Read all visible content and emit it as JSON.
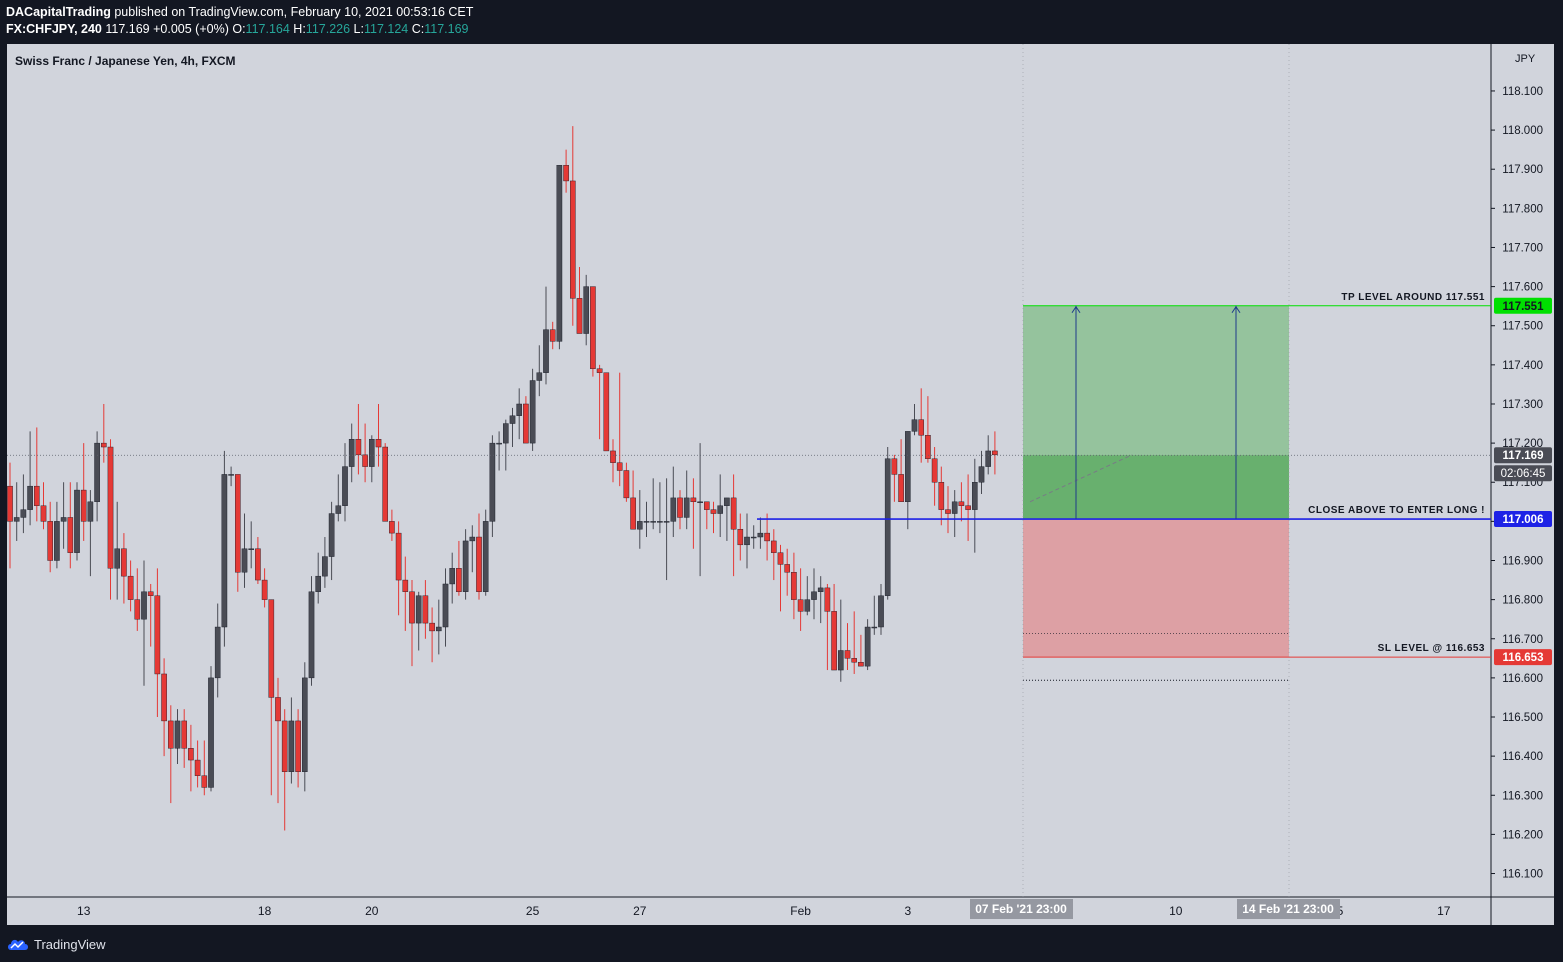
{
  "header": {
    "author": "DACapitalTrading",
    "published_text": "published on TradingView.com, February 10, 2021 00:53:16 CET",
    "symbol_interval": "FX:CHFJPY, 240",
    "last_price": "117.169",
    "change": "+0.005 (+0%)",
    "o_label": "O:",
    "o_value": "117.164",
    "h_label": "H:",
    "h_value": "117.226",
    "l_label": "L:",
    "l_value": "117.124",
    "c_label": "C:",
    "c_value": "117.169"
  },
  "footer": {
    "brand": "TradingView"
  },
  "chart_data": {
    "type": "candlestick",
    "title": "Swiss Franc / Japanese Yen, 4h, FXCM",
    "currency_label": "JPY",
    "ylim": [
      116.04,
      118.22
    ],
    "y_ticks": [
      "116.100",
      "116.200",
      "116.300",
      "116.400",
      "116.500",
      "116.600",
      "116.700",
      "116.800",
      "116.900",
      "117.000",
      "117.100",
      "117.200",
      "117.300",
      "117.400",
      "117.500",
      "117.600",
      "117.700",
      "117.800",
      "117.900",
      "118.000",
      "118.100"
    ],
    "x_ticks": [
      {
        "label": "13",
        "bar": 11
      },
      {
        "label": "18",
        "bar": 38
      },
      {
        "label": "20",
        "bar": 54
      },
      {
        "label": "25",
        "bar": 78
      },
      {
        "label": "27",
        "bar": 94
      },
      {
        "label": "Feb",
        "bar": 118
      },
      {
        "label": "3",
        "bar": 134
      },
      {
        "label": "8",
        "bar": 158
      },
      {
        "label": "10",
        "bar": 174
      },
      {
        "label": "15",
        "bar": 198
      },
      {
        "label": "17",
        "bar": 214
      }
    ],
    "colors": {
      "up": "#4a4c55",
      "down": "#e53935",
      "background": "#d1d4dc",
      "grid": "#d1d4dc"
    },
    "candles": [
      [
        117.09,
        117.15,
        116.88,
        117.0
      ],
      [
        117.0,
        117.1,
        116.95,
        117.01
      ],
      [
        117.01,
        117.12,
        116.97,
        117.03
      ],
      [
        117.03,
        117.23,
        116.99,
        117.09
      ],
      [
        117.09,
        117.24,
        117.0,
        117.04
      ],
      [
        117.04,
        117.1,
        116.98,
        117.0
      ],
      [
        117.0,
        117.05,
        116.87,
        116.9
      ],
      [
        116.9,
        117.05,
        116.88,
        117.0
      ],
      [
        117.0,
        117.1,
        116.93,
        117.01
      ],
      [
        117.01,
        117.1,
        116.88,
        116.92
      ],
      [
        116.92,
        117.1,
        116.9,
        117.08
      ],
      [
        117.08,
        117.2,
        116.95,
        117.0
      ],
      [
        117.0,
        117.08,
        116.86,
        117.05
      ],
      [
        117.05,
        117.23,
        117.0,
        117.2
      ],
      [
        117.2,
        117.3,
        117.15,
        117.19
      ],
      [
        117.19,
        117.21,
        116.8,
        116.88
      ],
      [
        116.88,
        117.05,
        116.8,
        116.93
      ],
      [
        116.93,
        116.97,
        116.79,
        116.86
      ],
      [
        116.86,
        116.9,
        116.77,
        116.8
      ],
      [
        116.8,
        116.88,
        116.72,
        116.75
      ],
      [
        116.75,
        116.9,
        116.58,
        116.82
      ],
      [
        116.82,
        116.84,
        116.68,
        116.81
      ],
      [
        116.81,
        116.88,
        116.5,
        116.61
      ],
      [
        116.61,
        116.65,
        116.4,
        116.49
      ],
      [
        116.49,
        116.53,
        116.28,
        116.42
      ],
      [
        116.42,
        116.52,
        116.38,
        116.49
      ],
      [
        116.49,
        116.52,
        116.37,
        116.42
      ],
      [
        116.42,
        116.48,
        116.31,
        116.39
      ],
      [
        116.39,
        116.44,
        116.32,
        116.35
      ],
      [
        116.35,
        116.44,
        116.3,
        116.32
      ],
      [
        116.32,
        116.63,
        116.31,
        116.6
      ],
      [
        116.6,
        116.79,
        116.55,
        116.73
      ],
      [
        116.73,
        117.18,
        116.68,
        117.12
      ],
      [
        117.12,
        117.14,
        117.09,
        117.12
      ],
      [
        117.12,
        117.12,
        116.82,
        116.87
      ],
      [
        116.87,
        117.02,
        116.83,
        116.93
      ],
      [
        116.93,
        117.0,
        116.88,
        116.93
      ],
      [
        116.93,
        116.96,
        116.84,
        116.85
      ],
      [
        116.85,
        116.88,
        116.78,
        116.8
      ],
      [
        116.8,
        116.8,
        116.3,
        116.55
      ],
      [
        116.55,
        116.6,
        116.28,
        116.49
      ],
      [
        116.49,
        116.52,
        116.21,
        116.36
      ],
      [
        116.36,
        116.55,
        116.33,
        116.49
      ],
      [
        116.49,
        116.52,
        116.32,
        116.36
      ],
      [
        116.36,
        116.64,
        116.31,
        116.6
      ],
      [
        116.6,
        116.86,
        116.58,
        116.82
      ],
      [
        116.82,
        116.92,
        116.79,
        116.86
      ],
      [
        116.86,
        116.96,
        116.83,
        116.91
      ],
      [
        116.91,
        117.05,
        116.85,
        117.02
      ],
      [
        117.02,
        117.12,
        117.0,
        117.04
      ],
      [
        117.04,
        117.2,
        117.0,
        117.14
      ],
      [
        117.14,
        117.25,
        117.1,
        117.21
      ],
      [
        117.21,
        117.3,
        117.12,
        117.17
      ],
      [
        117.17,
        117.25,
        117.1,
        117.14
      ],
      [
        117.14,
        117.22,
        117.1,
        117.21
      ],
      [
        117.21,
        117.3,
        117.14,
        117.19
      ],
      [
        117.19,
        117.2,
        117.02,
        117.0
      ],
      [
        117.0,
        117.03,
        116.95,
        116.97
      ],
      [
        116.97,
        117.0,
        116.76,
        116.85
      ],
      [
        116.85,
        116.91,
        116.72,
        116.82
      ],
      [
        116.82,
        116.85,
        116.63,
        116.74
      ],
      [
        116.74,
        116.82,
        116.67,
        116.81
      ],
      [
        116.81,
        116.85,
        116.7,
        116.74
      ],
      [
        116.74,
        116.78,
        116.64,
        116.72
      ],
      [
        116.72,
        116.8,
        116.66,
        116.73
      ],
      [
        116.73,
        116.88,
        116.68,
        116.84
      ],
      [
        116.84,
        116.92,
        116.79,
        116.88
      ],
      [
        116.88,
        116.95,
        116.81,
        116.82
      ],
      [
        116.82,
        116.98,
        116.8,
        116.95
      ],
      [
        116.95,
        116.99,
        116.87,
        116.96
      ],
      [
        116.96,
        117.02,
        116.8,
        116.82
      ],
      [
        116.82,
        117.03,
        116.81,
        117.0
      ],
      [
        117.0,
        117.22,
        116.96,
        117.2
      ],
      [
        117.2,
        117.23,
        117.13,
        117.2
      ],
      [
        117.2,
        117.26,
        117.13,
        117.25
      ],
      [
        117.25,
        117.29,
        117.19,
        117.27
      ],
      [
        117.27,
        117.34,
        117.21,
        117.3
      ],
      [
        117.3,
        117.32,
        117.2,
        117.2
      ],
      [
        117.2,
        117.39,
        117.18,
        117.36
      ],
      [
        117.36,
        117.45,
        117.32,
        117.38
      ],
      [
        117.38,
        117.6,
        117.35,
        117.49
      ],
      [
        117.49,
        117.51,
        117.44,
        117.46
      ],
      [
        117.46,
        117.91,
        117.44,
        117.91
      ],
      [
        117.91,
        117.95,
        117.84,
        117.87
      ],
      [
        117.87,
        118.01,
        117.5,
        117.57
      ],
      [
        117.57,
        117.65,
        117.48,
        117.48
      ],
      [
        117.48,
        117.63,
        117.45,
        117.6
      ],
      [
        117.6,
        117.6,
        117.37,
        117.39
      ],
      [
        117.39,
        117.4,
        117.21,
        117.38
      ],
      [
        117.38,
        117.38,
        117.18,
        117.18
      ],
      [
        117.18,
        117.21,
        117.1,
        117.15
      ],
      [
        117.15,
        117.38,
        117.09,
        117.13
      ],
      [
        117.13,
        117.15,
        117.05,
        117.06
      ],
      [
        117.06,
        117.13,
        116.98,
        116.98
      ],
      [
        116.98,
        117.08,
        116.93,
        117.0
      ],
      [
        117.0,
        117.05,
        116.96,
        117.0
      ],
      [
        117.0,
        117.11,
        116.98,
        117.0
      ],
      [
        117.0,
        117.1,
        116.97,
        117.0
      ],
      [
        117.0,
        117.11,
        116.85,
        117.0
      ],
      [
        117.0,
        117.14,
        116.96,
        117.06
      ]
    ],
    "candles_b": [
      [
        117.06,
        117.08,
        116.98,
        117.01
      ],
      [
        117.01,
        117.13,
        116.98,
        117.06
      ],
      [
        117.06,
        117.11,
        116.93,
        117.05
      ],
      [
        117.05,
        117.2,
        116.86,
        117.05
      ],
      [
        117.05,
        117.05,
        116.98,
        117.03
      ],
      [
        117.03,
        117.05,
        116.97,
        117.02
      ],
      [
        117.02,
        117.12,
        116.96,
        117.04
      ],
      [
        117.04,
        117.06,
        116.95,
        117.06
      ],
      [
        117.06,
        117.12,
        116.86,
        116.98
      ],
      [
        116.98,
        117.02,
        116.9,
        116.94
      ],
      [
        116.94,
        117.02,
        116.88,
        116.96
      ],
      [
        116.96,
        116.99,
        116.93,
        116.96
      ],
      [
        116.96,
        117.01,
        116.93,
        116.97
      ],
      [
        116.97,
        117.02,
        116.9,
        116.95
      ],
      [
        116.95,
        116.98,
        116.85,
        116.92
      ],
      [
        116.92,
        116.94,
        116.77,
        116.89
      ],
      [
        116.89,
        116.93,
        116.81,
        116.87
      ],
      [
        116.87,
        116.92,
        116.75,
        116.8
      ],
      [
        116.8,
        116.88,
        116.72,
        116.77
      ],
      [
        116.77,
        116.86,
        116.76,
        116.8
      ],
      [
        116.8,
        116.88,
        116.75,
        116.82
      ],
      [
        116.82,
        116.86,
        116.74,
        116.83
      ],
      [
        116.83,
        116.84,
        116.62,
        116.77
      ],
      [
        116.77,
        116.84,
        116.65,
        116.62
      ],
      [
        116.62,
        116.8,
        116.59,
        116.67
      ],
      [
        116.67,
        116.74,
        116.62,
        116.65
      ],
      [
        116.65,
        116.77,
        116.61,
        116.64
      ],
      [
        116.64,
        116.71,
        116.63,
        116.63
      ],
      [
        116.63,
        116.75,
        116.62,
        116.73
      ],
      [
        116.73,
        116.81,
        116.71,
        116.73
      ],
      [
        116.73,
        116.84,
        116.71,
        116.81
      ],
      [
        116.81,
        117.19,
        116.8,
        117.16
      ],
      [
        117.16,
        117.17,
        117.05,
        117.12
      ],
      [
        117.12,
        117.21,
        117.06,
        117.05
      ],
      [
        117.05,
        117.23,
        116.98,
        117.23
      ]
    ],
    "candles_c": [
      [
        117.23,
        117.3,
        117.22,
        117.26
      ],
      [
        117.26,
        117.34,
        117.15,
        117.22
      ],
      [
        117.22,
        117.32,
        117.15,
        117.16
      ],
      [
        117.16,
        117.19,
        117.04,
        117.1
      ],
      [
        117.1,
        117.14,
        116.99,
        117.03
      ],
      [
        117.03,
        117.09,
        116.97,
        117.02
      ],
      [
        117.02,
        117.08,
        116.96,
        117.05
      ],
      [
        117.05,
        117.1,
        117.0,
        117.04
      ],
      [
        117.04,
        117.12,
        116.95,
        117.03
      ],
      [
        117.03,
        117.16,
        116.92,
        117.1
      ],
      [
        117.1,
        117.18,
        117.07,
        117.14
      ],
      [
        117.14,
        117.22,
        117.12,
        117.18
      ],
      [
        117.18,
        117.23,
        117.12,
        117.17
      ]
    ],
    "position": {
      "type": "long",
      "entry": 117.006,
      "target": 117.551,
      "stop": 116.653,
      "current": 117.169
    },
    "price_labels": {
      "target": "117.551",
      "entry": "117.006",
      "stop": "116.653",
      "current": "117.169",
      "countdown": "02:06:45"
    },
    "annotations": {
      "tp": "TP LEVEL AROUND 117.551",
      "entry": "CLOSE ABOVE TO ENTER LONG !",
      "sl": "SL LEVEL @ 116.653"
    },
    "time_labels": {
      "start": "07 Feb '21  23:00",
      "end": "14 Feb '21  23:00"
    }
  }
}
